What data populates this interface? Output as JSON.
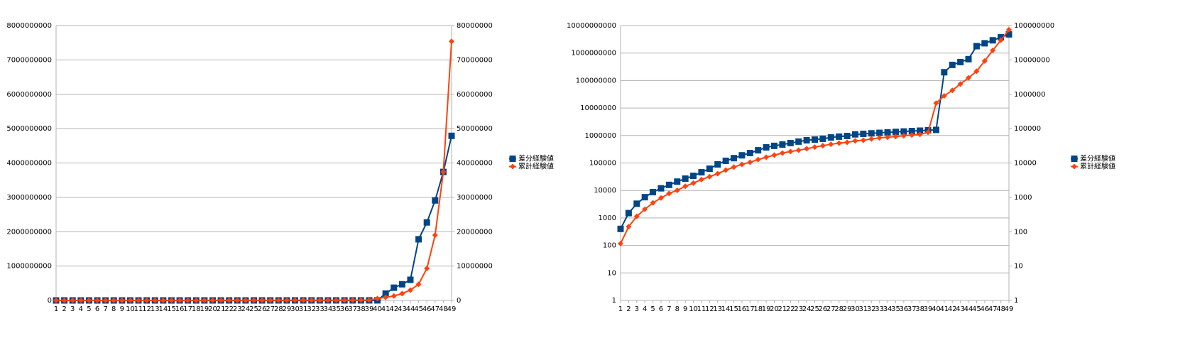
{
  "chart_data": [
    {
      "type": "line",
      "categories": [
        1,
        2,
        3,
        4,
        5,
        6,
        7,
        8,
        9,
        10,
        11,
        12,
        13,
        14,
        15,
        16,
        17,
        18,
        19,
        20,
        21,
        22,
        23,
        24,
        25,
        26,
        27,
        28,
        29,
        30,
        31,
        32,
        33,
        34,
        35,
        36,
        37,
        38,
        39,
        40,
        41,
        42,
        43,
        44,
        45,
        46,
        47,
        48,
        49
      ],
      "series": [
        {
          "name": "差分経験値",
          "color": "#004586",
          "marker": "square",
          "values": [
            400,
            1500,
            3300,
            5700,
            8700,
            12000,
            16000,
            21000,
            27000,
            34000,
            46000,
            62000,
            89000,
            120000,
            150000,
            190000,
            230000,
            290000,
            370000,
            420000,
            470000,
            530000,
            600000,
            670000,
            710000,
            760000,
            850000,
            910000,
            960000,
            1100000,
            1150000,
            1200000,
            1250000,
            1300000,
            1350000,
            1400000,
            1450000,
            1500000,
            1550000,
            1600000,
            200000000,
            370000000,
            470000000,
            600000000,
            1780000000,
            2270000000,
            2910000000,
            3740000000,
            4790000000
          ]
        },
        {
          "name": "累計経験値",
          "color": "#ff420e",
          "marker": "diamond",
          "axis": "y2",
          "values": [
            45,
            140,
            280,
            450,
            690,
            960,
            1300,
            1600,
            2100,
            2600,
            3300,
            4000,
            4900,
            6200,
            7600,
            9100,
            10500,
            12600,
            14700,
            17000,
            19500,
            21500,
            23500,
            26000,
            29000,
            32000,
            35000,
            38000,
            40000,
            44000,
            46000,
            50000,
            54000,
            56000,
            59000,
            62000,
            65000,
            68000,
            78000,
            550000,
            900000,
            1300000,
            2000000,
            3000000,
            4700000,
            9300000,
            19000000,
            37400000,
            75400000
          ]
        }
      ],
      "ylim": [
        0,
        8000000000
      ],
      "yticks": [
        0,
        1000000000,
        2000000000,
        3000000000,
        4000000000,
        5000000000,
        6000000000,
        7000000000,
        8000000000
      ],
      "y2lim": [
        0,
        80000000
      ],
      "y2ticks": [
        0,
        10000000,
        20000000,
        30000000,
        40000000,
        50000000,
        60000000,
        70000000,
        80000000
      ],
      "grid": true,
      "legend": "right"
    },
    {
      "type": "line",
      "categories": [
        1,
        2,
        3,
        4,
        5,
        6,
        7,
        8,
        9,
        10,
        11,
        12,
        13,
        14,
        15,
        16,
        17,
        18,
        19,
        20,
        21,
        22,
        23,
        24,
        25,
        26,
        27,
        28,
        29,
        30,
        31,
        32,
        33,
        34,
        35,
        36,
        37,
        38,
        39,
        40,
        41,
        42,
        43,
        44,
        45,
        46,
        47,
        48,
        49
      ],
      "series": [
        {
          "name": "差分経験値",
          "color": "#004586",
          "marker": "square",
          "values": [
            400,
            1500,
            3300,
            5700,
            8700,
            12000,
            16000,
            21000,
            27000,
            34000,
            46000,
            62000,
            89000,
            120000,
            150000,
            190000,
            230000,
            290000,
            370000,
            420000,
            470000,
            530000,
            600000,
            670000,
            710000,
            760000,
            850000,
            910000,
            960000,
            1100000,
            1150000,
            1200000,
            1250000,
            1300000,
            1350000,
            1400000,
            1450000,
            1500000,
            1550000,
            1600000,
            200000000,
            370000000,
            470000000,
            600000000,
            1780000000,
            2270000000,
            2910000000,
            3740000000,
            4790000000
          ]
        },
        {
          "name": "累計経験値",
          "color": "#ff420e",
          "marker": "diamond",
          "axis": "y2",
          "values": [
            45,
            140,
            280,
            450,
            690,
            960,
            1300,
            1600,
            2100,
            2600,
            3300,
            4000,
            4900,
            6200,
            7600,
            9100,
            10500,
            12600,
            14700,
            17000,
            19500,
            21500,
            23500,
            26000,
            29000,
            32000,
            35000,
            38000,
            40000,
            44000,
            46000,
            50000,
            54000,
            56000,
            59000,
            62000,
            65000,
            68000,
            78000,
            550000,
            900000,
            1300000,
            2000000,
            3000000,
            4700000,
            9300000,
            19000000,
            37400000,
            75400000
          ]
        }
      ],
      "ylim": [
        1,
        10000000000
      ],
      "yticks": [
        1,
        10,
        100,
        1000,
        10000,
        100000,
        1000000,
        10000000,
        100000000,
        1000000000,
        10000000000
      ],
      "y2lim": [
        1,
        100000000
      ],
      "y2ticks": [
        1,
        10,
        100,
        1000,
        10000,
        100000,
        1000000,
        10000000,
        100000000
      ],
      "ylog": true,
      "y2log": true,
      "grid": true,
      "legend": "right"
    }
  ]
}
